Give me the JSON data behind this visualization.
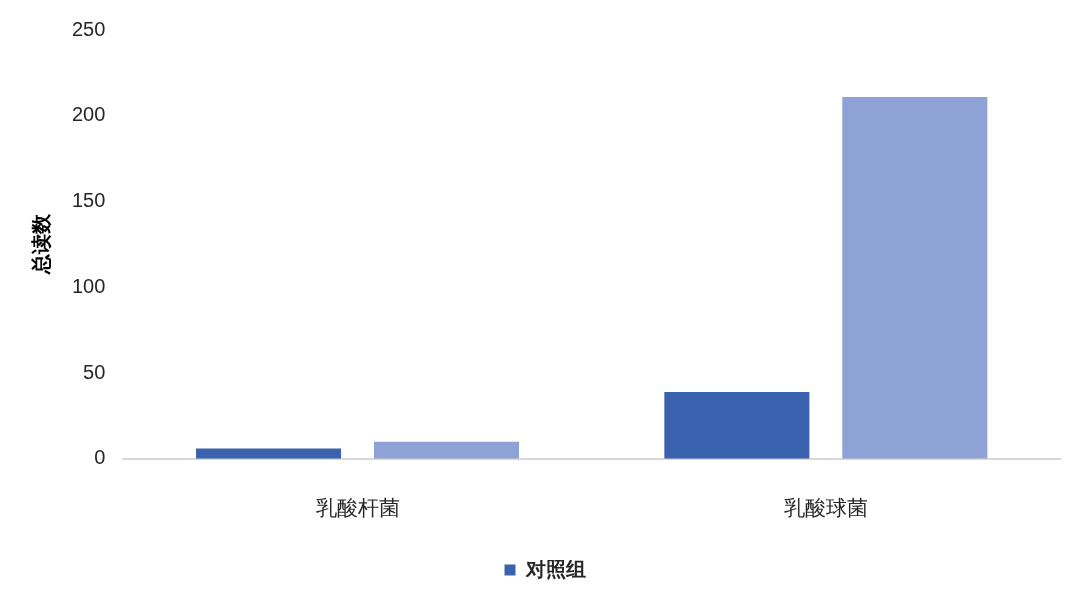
{
  "chart_data": {
    "type": "bar",
    "ylabel": "总读数",
    "categories": [
      "乳酸杆菌",
      "乳酸球菌"
    ],
    "series": [
      {
        "name": "对照组",
        "color": "#3b62ae",
        "values": [
          6,
          39
        ]
      },
      {
        "color": "#8fa2d6",
        "values": [
          10,
          211
        ]
      }
    ],
    "ylim": [
      0,
      250
    ],
    "yticks": [
      0,
      50,
      100,
      150,
      200,
      250
    ],
    "legend": "bottom"
  }
}
